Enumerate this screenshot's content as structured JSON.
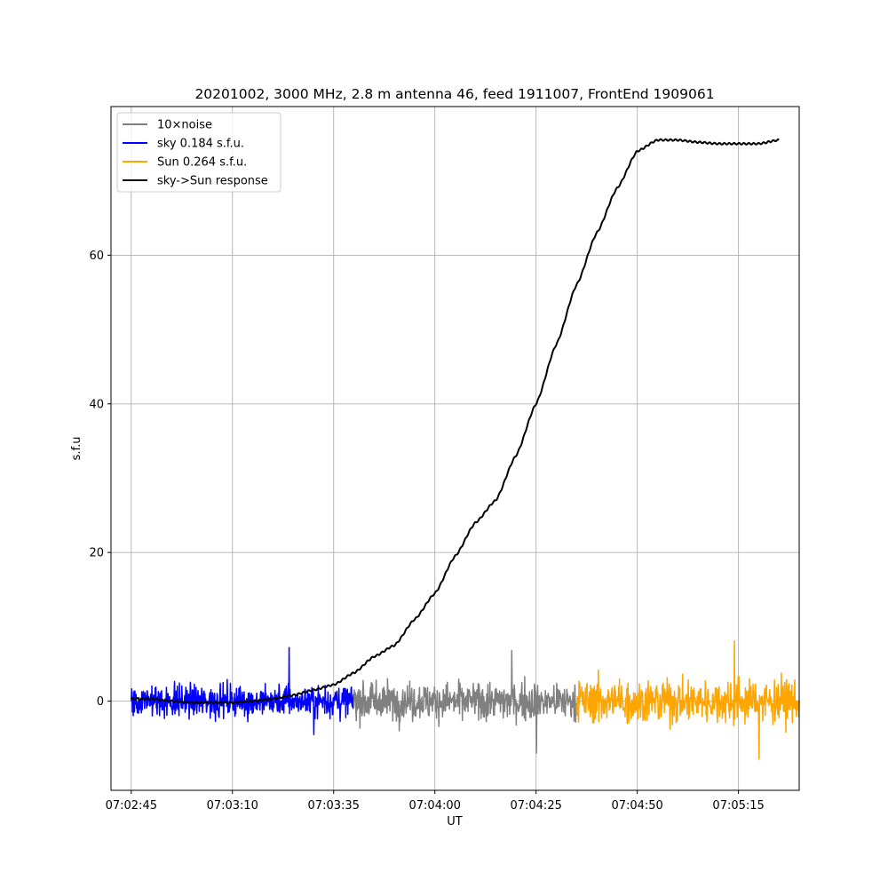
{
  "chart_data": {
    "type": "line",
    "title": "20201002, 3000 MHz, 2.8 m antenna 46, feed 1911007, FrontEnd 1909061",
    "xlabel": "UT",
    "ylabel": "s.f.u",
    "xlim": [
      "07:02:40",
      "07:05:30"
    ],
    "ylim": [
      -12,
      80
    ],
    "xticks": [
      "07:02:45",
      "07:03:10",
      "07:03:35",
      "07:04:00",
      "07:04:25",
      "07:04:50",
      "07:05:15"
    ],
    "yticks": [
      0,
      20,
      40,
      60
    ],
    "grid": true,
    "legend_position": "top-left",
    "legend": [
      {
        "label": "10×noise",
        "color": "#808080"
      },
      {
        "label": "sky 0.184 s.f.u.",
        "color": "#0000ff"
      },
      {
        "label": "Sun 0.264 s.f.u.",
        "color": "#ffa500"
      },
      {
        "label": "sky->Sun response",
        "color": "#000000"
      }
    ],
    "series": [
      {
        "name": "sky->Sun response",
        "color": "#000000",
        "x": [
          "07:02:45",
          "07:02:50",
          "07:02:55",
          "07:03:00",
          "07:03:05",
          "07:03:10",
          "07:03:15",
          "07:03:20",
          "07:03:25",
          "07:03:30",
          "07:03:35",
          "07:03:40",
          "07:03:45",
          "07:03:50",
          "07:03:55",
          "07:04:00",
          "07:04:05",
          "07:04:10",
          "07:04:15",
          "07:04:20",
          "07:04:25",
          "07:04:30",
          "07:04:35",
          "07:04:40",
          "07:04:45",
          "07:04:50",
          "07:04:55",
          "07:05:00",
          "07:05:05",
          "07:05:10",
          "07:05:15",
          "07:05:20",
          "07:05:25"
        ],
        "y": [
          0.3,
          0.3,
          0.0,
          -0.2,
          -0.2,
          -0.2,
          0.0,
          0.3,
          0.8,
          1.5,
          2.2,
          3.8,
          6.0,
          7.5,
          11,
          14.5,
          19.5,
          24,
          27,
          33,
          40,
          48,
          56,
          63,
          69,
          74,
          75.5,
          75.5,
          75.2,
          75,
          75,
          75,
          75.5
        ]
      },
      {
        "name": "sky 0.184 s.f.u.",
        "color": "#0000ff",
        "x_range": [
          "07:02:45",
          "07:03:40"
        ],
        "mean": 0.0,
        "amplitude_range": [
          -4.5,
          7.2
        ]
      },
      {
        "name": "10×noise",
        "color": "#808080",
        "x_range": [
          "07:03:40",
          "07:04:35"
        ],
        "mean": 0.0,
        "amplitude_range": [
          -7.0,
          6.8
        ]
      },
      {
        "name": "Sun 0.264 s.f.u.",
        "color": "#ffa500",
        "x_range": [
          "07:04:35",
          "07:05:30"
        ],
        "mean": 0.0,
        "amplitude_range": [
          -7.8,
          8.1
        ]
      }
    ]
  }
}
